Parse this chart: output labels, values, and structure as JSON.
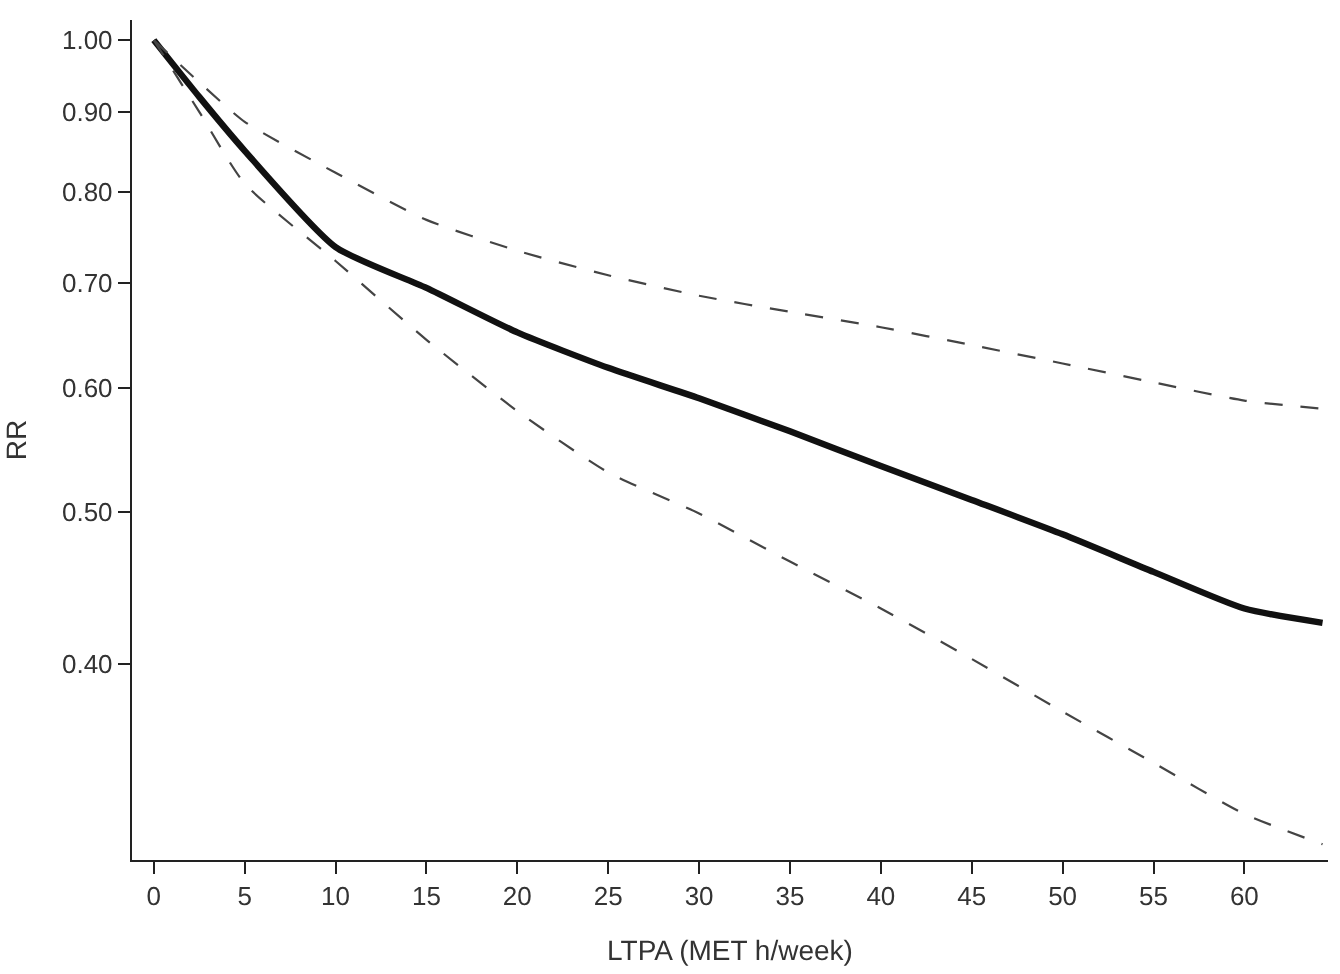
{
  "chart_data": {
    "type": "line",
    "xlabel": "LTPA (MET h/week)",
    "ylabel": "RR",
    "log": "y",
    "x": [
      0,
      2.5,
      5,
      10,
      15,
      20,
      25,
      30,
      35,
      40,
      45,
      50,
      55,
      60,
      64.3
    ],
    "series": [
      {
        "color": "#111111",
        "line_style": "solid",
        "values": [
          1.0,
          0.92,
          0.85,
          0.738,
          0.695,
          0.651,
          0.618,
          0.591,
          0.563,
          0.535,
          0.509,
          0.484,
          0.458,
          0.434,
          0.425
        ]
      },
      {
        "color": "#444444",
        "line_style": "dashed",
        "values": [
          1.0,
          0.94,
          0.887,
          0.823,
          0.768,
          0.734,
          0.708,
          0.687,
          0.671,
          0.656,
          0.639,
          0.622,
          0.605,
          0.589,
          0.582
        ]
      },
      {
        "color": "#444444",
        "line_style": "dashed",
        "values": [
          1.0,
          0.9,
          0.81,
          0.723,
          0.644,
          0.58,
          0.53,
          0.499,
          0.465,
          0.434,
          0.403,
          0.373,
          0.346,
          0.321,
          0.307
        ]
      }
    ],
    "xlim": [
      -1.2,
      64.6
    ],
    "ylim": [
      0.3,
      1.03
    ],
    "xticks": [
      0,
      5,
      10,
      15,
      20,
      25,
      30,
      35,
      40,
      45,
      50,
      55,
      60
    ],
    "yticks": [
      {
        "value": 0.4,
        "label": "0.40"
      },
      {
        "value": 0.5,
        "label": "0.50"
      },
      {
        "value": 0.6,
        "label": "0.60"
      },
      {
        "value": 0.7,
        "label": "0.70"
      },
      {
        "value": 0.8,
        "label": "0.80"
      },
      {
        "value": 0.9,
        "label": "0.90"
      },
      {
        "value": 1.0,
        "label": "1.00"
      }
    ],
    "marker": "none"
  }
}
